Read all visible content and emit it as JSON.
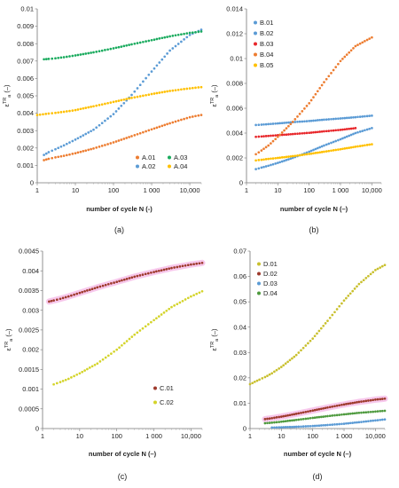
{
  "chart_data": [
    {
      "type": "scatter",
      "panel_label": "(a)",
      "xlabel": "number of cycle N (-)",
      "ylabel": "ε^TR_a (–)",
      "xscale": "log",
      "xlim": [
        1,
        20000
      ],
      "ylim": [
        0,
        0.01
      ],
      "yticks": [
        "0",
        "0.001",
        "0.002",
        "0.003",
        "0.004",
        "0.005",
        "0.006",
        "0.007",
        "0.008",
        "0.009",
        "0.01"
      ],
      "yticks_values": [
        0,
        0.001,
        0.002,
        0.003,
        0.004,
        0.005,
        0.006,
        0.007,
        0.008,
        0.009,
        0.01
      ],
      "xticks": [
        "1",
        "10",
        "100",
        "1 000",
        "10,000"
      ],
      "xticks_values": [
        1,
        10,
        100,
        1000,
        10000
      ],
      "grid": false,
      "legend_position": "bottom-right",
      "legend_columns": 2,
      "series": [
        {
          "name": "A.01",
          "color": "#ED7D31",
          "x": [
            1.5,
            2,
            3,
            5,
            10,
            30,
            100,
            300,
            1000,
            3000,
            10000,
            20000
          ],
          "y": [
            0.0013,
            0.00138,
            0.00146,
            0.00155,
            0.0017,
            0.00197,
            0.00232,
            0.00268,
            0.00307,
            0.00342,
            0.00377,
            0.0039
          ]
        },
        {
          "name": "A.02",
          "color": "#5B9BD5",
          "x": [
            1.5,
            2,
            3,
            5,
            10,
            30,
            100,
            300,
            1000,
            3000,
            10000,
            20000
          ],
          "y": [
            0.0016,
            0.00176,
            0.00193,
            0.00215,
            0.00248,
            0.00305,
            0.00395,
            0.00505,
            0.0064,
            0.0076,
            0.0085,
            0.0088
          ]
        },
        {
          "name": "A.03",
          "color": "#1AAB5E",
          "x": [
            1.5,
            2,
            3,
            5,
            10,
            30,
            100,
            300,
            1000,
            3000,
            10000,
            20000
          ],
          "y": [
            0.0071,
            0.00712,
            0.00716,
            0.00722,
            0.00732,
            0.0075,
            0.00773,
            0.00796,
            0.0082,
            0.00842,
            0.00862,
            0.0087
          ]
        },
        {
          "name": "A.04",
          "color": "#FFC000",
          "x": [
            1,
            2,
            3,
            5,
            10,
            30,
            100,
            300,
            1000,
            3000,
            10000,
            20000
          ],
          "y": [
            0.0039,
            0.00398,
            0.00402,
            0.00408,
            0.00418,
            0.0044,
            0.00465,
            0.00488,
            0.0051,
            0.00528,
            0.00543,
            0.0055
          ]
        }
      ]
    },
    {
      "type": "scatter",
      "panel_label": "(b)",
      "xlabel": "number of cycle N (–)",
      "ylabel": "ε^TR_a (–)",
      "xscale": "log",
      "xlim": [
        1,
        20000
      ],
      "ylim": [
        0,
        0.014
      ],
      "yticks": [
        "0",
        "0.002",
        "0.004",
        "0.006",
        "0.008",
        "0.01",
        "0.012",
        "0.014"
      ],
      "yticks_values": [
        0,
        0.002,
        0.004,
        0.006,
        0.008,
        0.01,
        0.012,
        0.014
      ],
      "xticks": [
        "1",
        "10",
        "100",
        "1 000",
        "10,000"
      ],
      "xticks_values": [
        1,
        10,
        100,
        1000,
        10000
      ],
      "grid": false,
      "legend_position": "top-left",
      "legend_columns": 1,
      "series": [
        {
          "name": "B.01",
          "color": "#5B9BD5",
          "x": [
            2,
            3,
            5,
            10,
            30,
            100,
            300,
            1000,
            3000,
            10000
          ],
          "y": [
            0.0011,
            0.00122,
            0.00137,
            0.0016,
            0.002,
            0.0025,
            0.003,
            0.0035,
            0.004,
            0.0044
          ]
        },
        {
          "name": "B.02",
          "color": "#5B9BD5",
          "x": [
            2,
            3,
            5,
            10,
            30,
            100,
            300,
            1000,
            3000,
            10000
          ],
          "y": [
            0.00465,
            0.00468,
            0.00472,
            0.00478,
            0.00488,
            0.00497,
            0.00508,
            0.00518,
            0.00528,
            0.0054
          ]
        },
        {
          "name": "B.03",
          "color": "#E8262A",
          "x": [
            2,
            3,
            5,
            10,
            30,
            100,
            300,
            1000,
            3000
          ],
          "y": [
            0.0037,
            0.00373,
            0.00377,
            0.00383,
            0.00392,
            0.00402,
            0.00414,
            0.00426,
            0.0044
          ]
        },
        {
          "name": "B.04",
          "color": "#ED7D31",
          "x": [
            2,
            3,
            5,
            10,
            30,
            100,
            300,
            1000,
            3000,
            10000
          ],
          "y": [
            0.0023,
            0.0026,
            0.003,
            0.0037,
            0.0049,
            0.0064,
            0.0081,
            0.0098,
            0.011,
            0.0117
          ]
        },
        {
          "name": "B.05",
          "color": "#FFC000",
          "x": [
            2,
            3,
            5,
            10,
            30,
            100,
            300,
            1000,
            3000,
            10000
          ],
          "y": [
            0.0018,
            0.00185,
            0.00192,
            0.002,
            0.00214,
            0.00232,
            0.0025,
            0.0027,
            0.0029,
            0.0031
          ]
        }
      ]
    },
    {
      "type": "scatter",
      "panel_label": "(c)",
      "xlabel": "number of cycle N (–)",
      "ylabel": "ε^TR_a (–)",
      "xscale": "log",
      "xlim": [
        1,
        20000
      ],
      "ylim": [
        0,
        0.0045
      ],
      "yticks": [
        "0",
        "0.0005",
        "0.001",
        "0.0015",
        "0.002",
        "0.0025",
        "0.003",
        "0.0035",
        "0.004",
        "0.0045"
      ],
      "yticks_values": [
        0,
        0.0005,
        0.001,
        0.0015,
        0.002,
        0.0025,
        0.003,
        0.0035,
        0.004,
        0.0045
      ],
      "xticks": [
        "1",
        "10",
        "100",
        "1 000",
        "10,000"
      ],
      "xticks_values": [
        1,
        10,
        100,
        1000,
        10000
      ],
      "grid": false,
      "legend_position": "bottom-right",
      "legend_columns": 1,
      "series": [
        {
          "name": "C.01",
          "color": "#9E3A2C",
          "x": [
            1.5,
            2,
            3,
            5,
            10,
            30,
            100,
            300,
            1000,
            3000,
            10000,
            20000
          ],
          "y": [
            0.00322,
            0.00325,
            0.00329,
            0.00335,
            0.00344,
            0.00358,
            0.00372,
            0.00385,
            0.00397,
            0.00407,
            0.00416,
            0.0042
          ]
        },
        {
          "name": "C.02",
          "color": "#D4D42A",
          "x": [
            2,
            3,
            5,
            10,
            30,
            100,
            300,
            1000,
            3000,
            10000,
            20000
          ],
          "y": [
            0.00112,
            0.00118,
            0.00126,
            0.0014,
            0.00165,
            0.002,
            0.00238,
            0.00275,
            0.00308,
            0.00335,
            0.00348
          ]
        }
      ]
    },
    {
      "type": "scatter",
      "panel_label": "(d)",
      "xlabel": "number of cycle N (–)",
      "ylabel": "ε^TR_a (–)",
      "xscale": "log",
      "xlim": [
        1,
        20000
      ],
      "ylim": [
        0,
        0.07
      ],
      "yticks": [
        "0",
        "0.01",
        "0.02",
        "0.03",
        "0.04",
        "0.05",
        "0.06",
        "0.07"
      ],
      "yticks_values": [
        0,
        0.01,
        0.02,
        0.03,
        0.04,
        0.05,
        0.06,
        0.07
      ],
      "xticks": [
        "1",
        "10",
        "100",
        "1 000",
        "10,000"
      ],
      "xticks_values": [
        1,
        10,
        100,
        1000,
        10000
      ],
      "grid": false,
      "legend_position": "top-left",
      "legend_columns": 1,
      "series": [
        {
          "name": "D.01",
          "color": "#C9C02E",
          "x": [
            1,
            2,
            3,
            5,
            10,
            30,
            100,
            300,
            1000,
            3000,
            10000,
            20000
          ],
          "y": [
            0.0175,
            0.0193,
            0.0203,
            0.0218,
            0.0243,
            0.029,
            0.0355,
            0.0425,
            0.0505,
            0.057,
            0.0625,
            0.0645
          ]
        },
        {
          "name": "D.02",
          "color": "#9E3A2C",
          "x": [
            3,
            5,
            10,
            30,
            100,
            300,
            1000,
            3000,
            10000,
            20000
          ],
          "y": [
            0.0037,
            0.0041,
            0.0047,
            0.0058,
            0.0071,
            0.0083,
            0.0095,
            0.0105,
            0.0114,
            0.0118
          ]
        },
        {
          "name": "D.03",
          "color": "#5B9BD5",
          "x": [
            5,
            10,
            30,
            100,
            300,
            1000,
            3000,
            10000,
            20000
          ],
          "y": [
            0.0004,
            0.0005,
            0.0007,
            0.001,
            0.0014,
            0.0019,
            0.0025,
            0.0032,
            0.0036
          ]
        },
        {
          "name": "D.04",
          "color": "#4E9A3E",
          "x": [
            3,
            5,
            10,
            30,
            100,
            300,
            1000,
            3000,
            10000,
            20000
          ],
          "y": [
            0.0021,
            0.0023,
            0.0027,
            0.0034,
            0.0042,
            0.0049,
            0.0056,
            0.0062,
            0.0067,
            0.007
          ]
        }
      ]
    }
  ]
}
